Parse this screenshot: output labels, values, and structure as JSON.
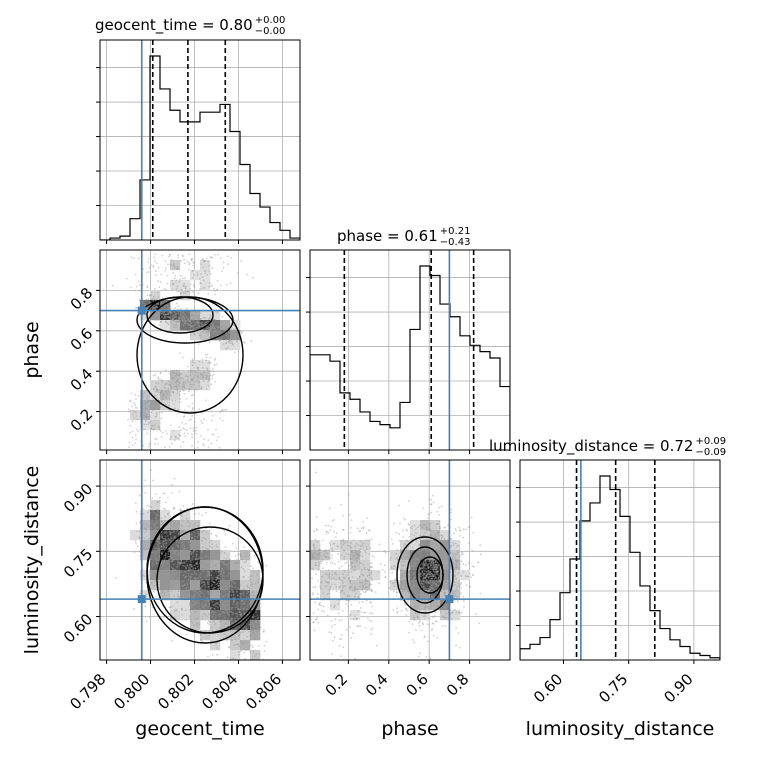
{
  "chart_data": {
    "type": "corner",
    "parameters": [
      "geocent_time",
      "phase",
      "luminosity_distance"
    ],
    "truth": {
      "geocent_time": 0.7996,
      "phase": 0.7,
      "luminosity_distance": 0.64
    },
    "titles": [
      {
        "param": "geocent_time",
        "text": "geocent_time = 0.80",
        "sup": "+0.00",
        "sub": "−0.00"
      },
      {
        "param": "phase",
        "text": "phase = 0.61",
        "sup": "+0.21",
        "sub": "−0.43"
      },
      {
        "param": "luminosity_distance",
        "text": "luminosity_distance = 0.72",
        "sup": "+0.09",
        "sub": "−0.09"
      }
    ],
    "ranges": {
      "geocent_time": [
        0.7977,
        0.8068
      ],
      "phase": [
        0.01,
        1.0
      ],
      "luminosity_distance": [
        0.5,
        0.96
      ]
    },
    "ticks": {
      "geocent_time": [
        "0.798",
        "0.800",
        "0.802",
        "0.804",
        "0.806"
      ],
      "phase": [
        "0.2",
        "0.4",
        "0.6",
        "0.8"
      ],
      "luminosity_distance": [
        "0.60",
        "0.75",
        "0.90"
      ]
    },
    "quantiles": {
      "geocent_time": [
        0.8001,
        0.8017,
        0.8034
      ],
      "phase": [
        0.18,
        0.61,
        0.82
      ],
      "luminosity_distance": [
        0.63,
        0.72,
        0.81
      ]
    },
    "histograms": {
      "geocent_time": {
        "edges_start": 0.7977,
        "bin_width": 0.000455,
        "counts": [
          0,
          1,
          2,
          11,
          31,
          95,
          78,
          67,
          61,
          61,
          66,
          66,
          70,
          56,
          39,
          24,
          17,
          9,
          5,
          1
        ]
      },
      "phase": {
        "edges_start": 0.01,
        "bin_width": 0.0495,
        "counts": [
          30,
          30,
          28,
          18,
          16,
          12,
          9,
          8,
          7,
          15,
          38,
          58,
          55,
          46,
          42,
          36,
          33,
          31,
          29,
          20
        ]
      },
      "luminosity_distance": {
        "edges_start": 0.5,
        "bin_width": 0.023,
        "counts": [
          5,
          7,
          10,
          18,
          30,
          45,
          62,
          70,
          82,
          76,
          64,
          48,
          33,
          22,
          14,
          9,
          6,
          3,
          2,
          1
        ]
      }
    },
    "grid": true
  }
}
